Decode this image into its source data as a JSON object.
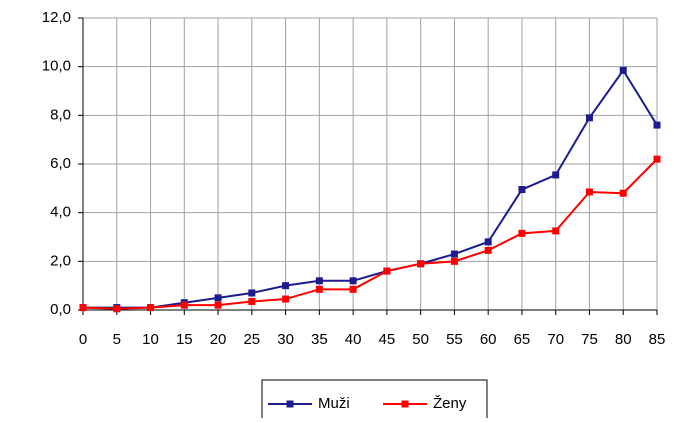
{
  "chart_data": {
    "type": "line",
    "x": [
      0,
      5,
      10,
      15,
      20,
      25,
      30,
      35,
      40,
      45,
      50,
      55,
      60,
      65,
      70,
      75,
      80,
      85
    ],
    "series": [
      {
        "name": "Muži",
        "color": "#1c1c8f",
        "values": [
          0.1,
          0.1,
          0.1,
          0.3,
          0.5,
          0.7,
          1.0,
          1.2,
          1.2,
          1.6,
          1.9,
          2.3,
          2.8,
          4.95,
          5.55,
          7.9,
          9.85,
          7.6
        ]
      },
      {
        "name": "Ženy",
        "color": "#ff0000",
        "values": [
          0.1,
          0.05,
          0.1,
          0.2,
          0.2,
          0.35,
          0.45,
          0.85,
          0.85,
          1.6,
          1.9,
          2.0,
          2.45,
          3.15,
          3.25,
          4.85,
          4.8,
          6.2
        ]
      }
    ],
    "xlim": [
      0,
      85
    ],
    "xticks": [
      0,
      5,
      10,
      15,
      20,
      25,
      30,
      35,
      40,
      45,
      50,
      55,
      60,
      65,
      70,
      75,
      80,
      85
    ],
    "ylim": [
      0,
      12
    ],
    "yticks": [
      {
        "value": 0,
        "label": "0,0"
      },
      {
        "value": 2,
        "label": "2,0"
      },
      {
        "value": 4,
        "label": "4,0"
      },
      {
        "value": 6,
        "label": "6,0"
      },
      {
        "value": 8,
        "label": "8,0"
      },
      {
        "value": 10,
        "label": "10,0"
      },
      {
        "value": 12,
        "label": "12,0"
      }
    ],
    "grid": true,
    "legend": "bottom"
  }
}
